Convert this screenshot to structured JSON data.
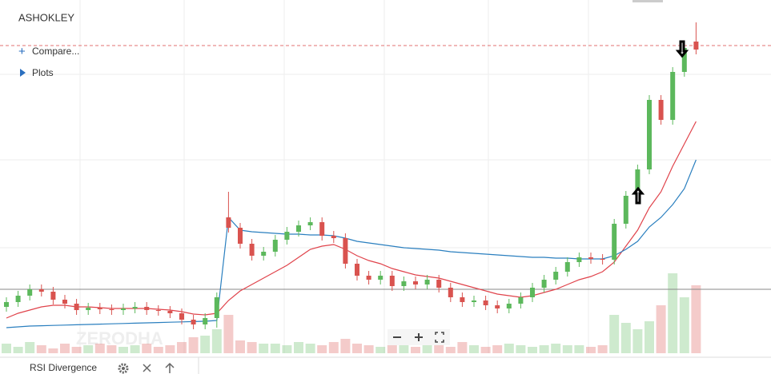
{
  "chart_data": {
    "type": "candlestick",
    "title": "ASHOKLEY",
    "compare_label": "Compare...",
    "plots_label": "Plots",
    "watermark": "ZERODHA",
    "indicator_label": "RSI Divergence",
    "ylim": [
      0,
      110
    ],
    "volume_ylim": [
      0,
      110
    ],
    "up_color": "#5cb85c",
    "down_color": "#d9534f",
    "open": [
      14,
      15.5,
      17.5,
      19.5,
      18.75,
      16.25,
      15,
      13,
      13.75,
      13.25,
      13,
      13.5,
      14,
      13,
      12.75,
      12,
      10,
      8.5,
      10.5,
      42,
      38.75,
      33.75,
      30,
      31.25,
      35,
      37.5,
      39.5,
      40.5,
      36.25,
      35.5,
      27.5,
      23.75,
      22.5,
      23.75,
      20.5,
      22,
      21,
      22.5,
      20,
      17,
      15.5,
      16,
      14.5,
      13.5,
      15,
      17,
      20,
      22.5,
      25,
      28,
      29.5,
      29,
      28.75,
      40,
      48.75,
      57,
      78.75,
      72.5,
      87.5,
      97
    ],
    "high": [
      17,
      19,
      21,
      21,
      20.25,
      17.75,
      16.5,
      15.25,
      15.25,
      14.75,
      15,
      15.5,
      15.5,
      14.5,
      14.25,
      13.5,
      11.5,
      12,
      18.5,
      50,
      40.25,
      35.25,
      32.75,
      36.5,
      39,
      41,
      42,
      42,
      37.75,
      37,
      29,
      25.25,
      25.25,
      25.25,
      23.5,
      23.5,
      24,
      24,
      21.5,
      18.5,
      17.5,
      17.5,
      16,
      16.5,
      18.5,
      21.5,
      24,
      26.5,
      29.5,
      31,
      31,
      30.5,
      41.5,
      50.25,
      58.5,
      80.25,
      80.25,
      89,
      96.5,
      103
    ],
    "low": [
      12.5,
      14,
      16,
      17.25,
      14.75,
      13.5,
      11.5,
      11.5,
      11.75,
      11.5,
      11.5,
      12,
      11.5,
      11.25,
      10.5,
      8.5,
      7,
      7,
      7.5,
      37.25,
      32.25,
      28.5,
      28.5,
      29.75,
      33.5,
      36,
      38,
      34.75,
      34,
      26,
      22.25,
      21,
      21,
      19,
      19,
      19.5,
      19.5,
      18.5,
      15.5,
      14,
      14,
      13,
      12,
      12,
      13.5,
      15.5,
      18.5,
      21,
      23.5,
      26.5,
      27.5,
      27.25,
      27.25,
      38.5,
      47.25,
      55.5,
      71,
      71,
      86,
      93
    ],
    "close": [
      15.5,
      17.5,
      19.5,
      18.75,
      16.25,
      15,
      13,
      13.75,
      13.25,
      13,
      13.5,
      14,
      13,
      12.75,
      12,
      10,
      8.5,
      10.5,
      17,
      38.75,
      33.75,
      30,
      31.25,
      35,
      37.5,
      39.5,
      40.5,
      36.25,
      35.5,
      27.5,
      23.75,
      22.5,
      23.75,
      20.5,
      22,
      21,
      22.5,
      20,
      17,
      15.5,
      16,
      14.5,
      13.5,
      15,
      17,
      20,
      22.5,
      25,
      28,
      29.5,
      29,
      28.75,
      40,
      48.75,
      57,
      78.75,
      72.5,
      87.5,
      95,
      94.5
    ],
    "volume": [
      12,
      8,
      14,
      10,
      6,
      12,
      8,
      10,
      12,
      10,
      8,
      10,
      12,
      8,
      10,
      14,
      20,
      22,
      30,
      48,
      16,
      14,
      12,
      12,
      10,
      14,
      12,
      10,
      14,
      18,
      12,
      10,
      8,
      10,
      12,
      8,
      10,
      12,
      8,
      14,
      10,
      8,
      10,
      12,
      10,
      8,
      10,
      12,
      10,
      10,
      8,
      10,
      48,
      38,
      30,
      40,
      60,
      100,
      70,
      85
    ],
    "series": [
      {
        "color": "#e0434b",
        "values": [
          10.5,
          12,
          13,
          14,
          14.5,
          14.5,
          14,
          14,
          13.75,
          13.5,
          13.5,
          13.5,
          13.5,
          13.25,
          13,
          12.5,
          11.75,
          11.5,
          12,
          16,
          19,
          21,
          23,
          25,
          27,
          29.5,
          32,
          33,
          33.5,
          32,
          30,
          28.5,
          27.5,
          26,
          25,
          24,
          23.5,
          23,
          22,
          21,
          20,
          19,
          18,
          17.5,
          17,
          17.5,
          18.5,
          19.5,
          21,
          22.5,
          23.5,
          25,
          28,
          33,
          38,
          45,
          50,
          58,
          65,
          72
        ]
      },
      {
        "color": "#2a7fbf",
        "values": [
          7.5,
          7.75,
          8,
          8.1,
          8.2,
          8.3,
          8.4,
          8.5,
          8.6,
          8.7,
          8.8,
          8.9,
          9,
          9.1,
          9.2,
          9.3,
          9.4,
          9.5,
          9.75,
          42,
          38,
          37.5,
          37.25,
          37,
          36.75,
          36.75,
          36.5,
          36.5,
          36.25,
          35.5,
          34.5,
          34,
          33.5,
          33,
          32.5,
          32.25,
          32,
          31.75,
          31.25,
          31,
          30.75,
          30.5,
          30.25,
          30,
          29.75,
          29.5,
          29.5,
          29.25,
          29.25,
          29,
          29,
          29,
          30,
          32,
          34.5,
          39,
          42,
          46,
          51,
          60
        ]
      }
    ]
  }
}
